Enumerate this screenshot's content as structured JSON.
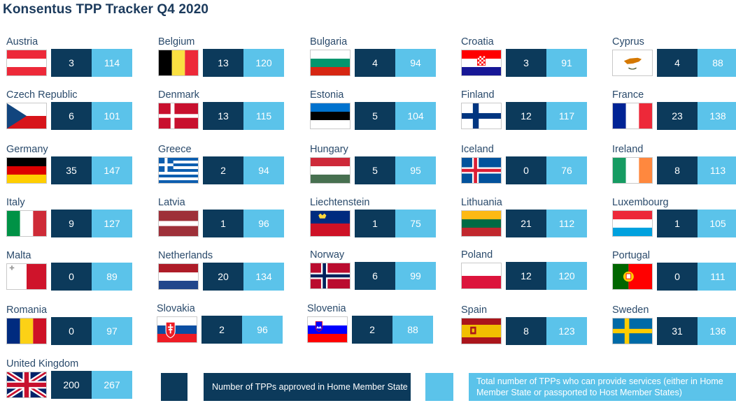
{
  "title": "Konsentus TPP Tracker Q4 2020",
  "colors": {
    "dark": "#0c3a5b",
    "light": "#5bc3ea"
  },
  "legend": {
    "home": "Number of TPPs approved in Home Member State",
    "total": "Total number of TPPs who can provide services (either in Home Member State or passported to Host Member States)"
  },
  "chart_data": {
    "type": "table",
    "title": "Konsentus TPP Tracker Q4 2020",
    "columns": [
      "Number of TPPs approved in Home Member State",
      "Total number of TPPs who can provide services (either in Home Member State or passported to Host Member States)"
    ],
    "rows": [
      {
        "country": "Austria",
        "flag": "austria",
        "home": 3,
        "total": 114
      },
      {
        "country": "Belgium",
        "flag": "belgium",
        "home": 13,
        "total": 120
      },
      {
        "country": "Bulgaria",
        "flag": "bulgaria",
        "home": 4,
        "total": 94
      },
      {
        "country": "Croatia",
        "flag": "croatia",
        "home": 3,
        "total": 91
      },
      {
        "country": "Cyprus",
        "flag": "cyprus",
        "home": 4,
        "total": 88
      },
      {
        "country": "Czech Republic",
        "flag": "czech",
        "home": 6,
        "total": 101
      },
      {
        "country": "Denmark",
        "flag": "denmark",
        "home": 13,
        "total": 115
      },
      {
        "country": "Estonia",
        "flag": "estonia",
        "home": 5,
        "total": 104
      },
      {
        "country": "Finland",
        "flag": "finland",
        "home": 12,
        "total": 117
      },
      {
        "country": "France",
        "flag": "france",
        "home": 23,
        "total": 138
      },
      {
        "country": "Germany",
        "flag": "germany",
        "home": 35,
        "total": 147
      },
      {
        "country": "Greece",
        "flag": "greece",
        "home": 2,
        "total": 94
      },
      {
        "country": "Hungary",
        "flag": "hungary",
        "home": 5,
        "total": 95
      },
      {
        "country": "Iceland",
        "flag": "iceland",
        "home": 0,
        "total": 76
      },
      {
        "country": "Ireland",
        "flag": "ireland",
        "home": 8,
        "total": 113
      },
      {
        "country": "Italy",
        "flag": "italy",
        "home": 9,
        "total": 127
      },
      {
        "country": "Latvia",
        "flag": "latvia",
        "home": 1,
        "total": 96
      },
      {
        "country": "Liechtenstein",
        "flag": "liechtenstein",
        "home": 1,
        "total": 75
      },
      {
        "country": "Lithuania",
        "flag": "lithuania",
        "home": 21,
        "total": 112
      },
      {
        "country": "Luxembourg",
        "flag": "luxembourg",
        "home": 1,
        "total": 105
      },
      {
        "country": "Malta",
        "flag": "malta",
        "home": 0,
        "total": 89
      },
      {
        "country": "Netherlands",
        "flag": "netherlands",
        "home": 20,
        "total": 134
      },
      {
        "country": "Norway",
        "flag": "norway",
        "home": 6,
        "total": 99
      },
      {
        "country": "Poland",
        "flag": "poland",
        "home": 12,
        "total": 120
      },
      {
        "country": "Portugal",
        "flag": "portugal",
        "home": 0,
        "total": 111
      },
      {
        "country": "Romania",
        "flag": "romania",
        "home": 0,
        "total": 97
      },
      {
        "country": "Slovakia",
        "flag": "slovakia",
        "home": 2,
        "total": 96
      },
      {
        "country": "Slovenia",
        "flag": "slovenia",
        "home": 2,
        "total": 88
      },
      {
        "country": "Spain",
        "flag": "spain",
        "home": 8,
        "total": 123
      },
      {
        "country": "Sweden",
        "flag": "sweden",
        "home": 31,
        "total": 136
      },
      {
        "country": "United Kingdom",
        "flag": "uk",
        "home": 200,
        "total": 267
      }
    ]
  }
}
